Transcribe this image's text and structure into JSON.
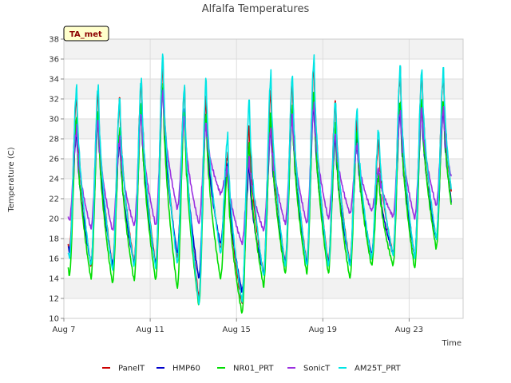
{
  "chart_data": {
    "type": "line",
    "title": "Alfalfa Temperatures",
    "xlabel": "Time",
    "ylabel": "Temperature (C)",
    "badge": "TA_met",
    "x_unit": "day-of-August-2020 (decimal)",
    "xlim": [
      7,
      25.5
    ],
    "ylim": [
      10,
      38
    ],
    "x_ticks": [
      {
        "value": 7,
        "label": "Aug 7"
      },
      {
        "value": 11,
        "label": "Aug 11"
      },
      {
        "value": 15,
        "label": "Aug 15"
      },
      {
        "value": 19,
        "label": "Aug 19"
      },
      {
        "value": 23,
        "label": "Aug 23"
      }
    ],
    "y_ticks": [
      10,
      12,
      14,
      16,
      18,
      20,
      22,
      24,
      26,
      28,
      30,
      32,
      34,
      36,
      38
    ],
    "grid": true,
    "legend_position": "bottom",
    "days": [
      7,
      8,
      9,
      10,
      11,
      12,
      13,
      14,
      15,
      16,
      17,
      18,
      19,
      20,
      21,
      22,
      23,
      24
    ],
    "series": [
      {
        "name": "PanelT",
        "color": "#cc0000",
        "daily_min": [
          16.8,
          15.3,
          15.2,
          15.5,
          15.4,
          16.0,
          12.0,
          17.0,
          11.5,
          14.5,
          15.5,
          15.5,
          15.5,
          15.5,
          16.0,
          16.5,
          16.0,
          18.0
        ],
        "daily_max": [
          32.5,
          32.8,
          32.0,
          33.8,
          35.8,
          33.0,
          32.3,
          26.5,
          29.5,
          32.8,
          33.8,
          35.5,
          31.8,
          30.0,
          28.0,
          34.8,
          34.5,
          34.5
        ]
      },
      {
        "name": "HMP60",
        "color": "#0000cc",
        "daily_min": [
          16.7,
          15.5,
          15.3,
          15.5,
          15.3,
          16.5,
          14.0,
          17.5,
          12.7,
          14.5,
          15.5,
          15.5,
          15.5,
          15.5,
          16.5,
          16.5,
          16.3,
          18.0
        ],
        "daily_max": [
          29.0,
          30.0,
          28.0,
          31.0,
          33.3,
          30.7,
          30.0,
          25.5,
          25.3,
          29.3,
          30.8,
          31.8,
          28.3,
          28.0,
          24.5,
          31.0,
          31.0,
          31.0
        ]
      },
      {
        "name": "NR01_PRT",
        "color": "#00dd00",
        "daily_min": [
          14.3,
          14.0,
          13.5,
          13.8,
          13.8,
          13.0,
          11.3,
          14.0,
          10.5,
          13.2,
          14.5,
          14.5,
          14.5,
          14.0,
          15.3,
          15.3,
          15.0,
          17.0
        ],
        "daily_max": [
          30.2,
          30.5,
          29.0,
          31.5,
          33.5,
          30.8,
          30.5,
          25.0,
          27.5,
          30.5,
          31.0,
          32.8,
          29.2,
          29.0,
          24.5,
          32.0,
          32.0,
          32.0
        ]
      },
      {
        "name": "SonicT",
        "color": "#9b30e0",
        "daily_min": [
          19.8,
          19.0,
          18.8,
          19.3,
          19.3,
          21.0,
          19.5,
          22.5,
          17.5,
          18.8,
          19.5,
          19.5,
          20.0,
          20.5,
          20.8,
          20.2,
          20.0,
          21.3
        ],
        "daily_max": [
          29.0,
          30.0,
          28.0,
          30.7,
          32.8,
          30.2,
          29.5,
          25.0,
          26.0,
          29.0,
          30.3,
          31.5,
          28.5,
          27.5,
          25.0,
          30.8,
          31.0,
          31.0
        ]
      },
      {
        "name": "AM25T_PRT",
        "color": "#00e5e5",
        "daily_min": [
          16.0,
          15.3,
          14.8,
          15.2,
          15.0,
          15.5,
          11.5,
          16.5,
          11.7,
          14.2,
          15.2,
          15.2,
          15.2,
          15.2,
          16.0,
          16.3,
          16.0,
          18.0
        ],
        "daily_max": [
          33.3,
          33.5,
          32.2,
          34.2,
          36.5,
          33.3,
          34.0,
          28.3,
          32.0,
          34.5,
          34.5,
          36.2,
          32.0,
          31.0,
          29.0,
          35.3,
          35.0,
          35.0
        ]
      }
    ]
  }
}
